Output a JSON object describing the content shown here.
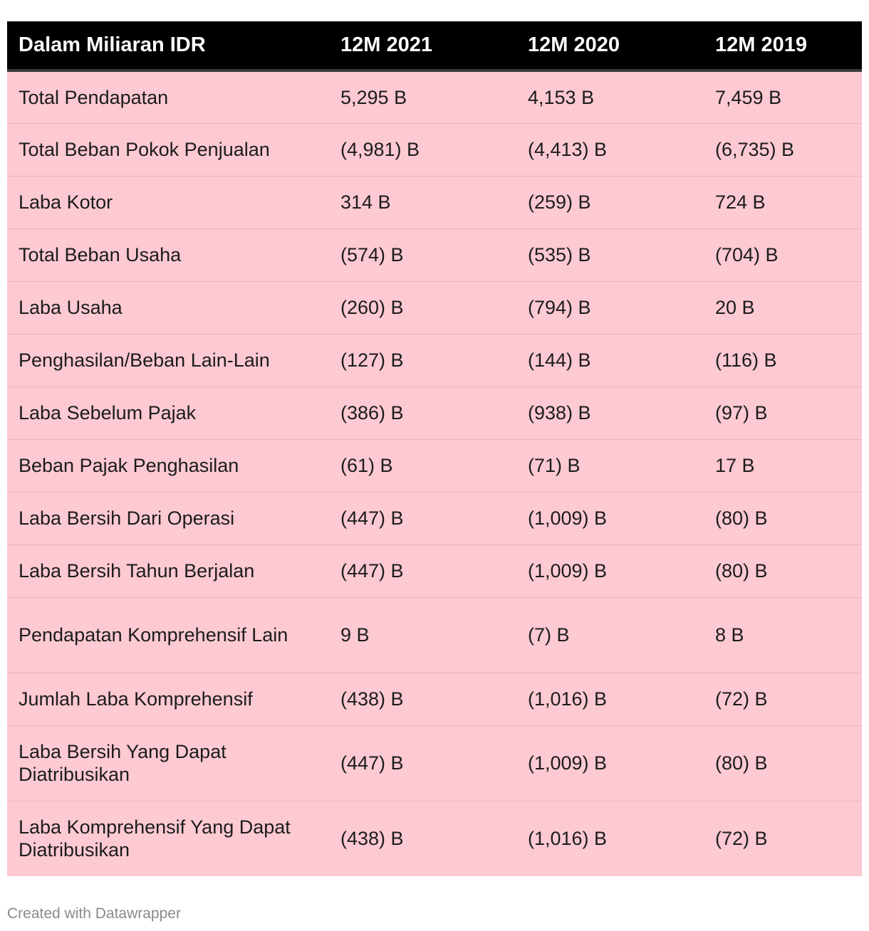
{
  "chart_data": {
    "type": "table",
    "columns": [
      "Dalam Miliaran IDR",
      "12M 2021",
      "12M 2020",
      "12M 2019"
    ],
    "rows": [
      {
        "label": "Total Pendapatan",
        "values": [
          "5,295 B",
          "4,153 B",
          "7,459 B"
        ]
      },
      {
        "label": "Total Beban Pokok Penjualan",
        "values": [
          "(4,981) B",
          "(4,413) B",
          "(6,735) B"
        ]
      },
      {
        "label": "Laba Kotor",
        "values": [
          "314 B",
          "(259) B",
          "724 B"
        ]
      },
      {
        "label": "Total Beban Usaha",
        "values": [
          "(574) B",
          "(535) B",
          "(704) B"
        ]
      },
      {
        "label": "Laba Usaha",
        "values": [
          "(260) B",
          "(794) B",
          "20 B"
        ]
      },
      {
        "label": "Penghasilan/Beban Lain-Lain",
        "values": [
          "(127) B",
          "(144) B",
          "(116) B"
        ]
      },
      {
        "label": "Laba Sebelum Pajak",
        "values": [
          "(386) B",
          "(938) B",
          "(97) B"
        ]
      },
      {
        "label": "Beban Pajak Penghasilan",
        "values": [
          "(61) B",
          "(71) B",
          "17 B"
        ]
      },
      {
        "label": "Laba Bersih Dari Operasi",
        "values": [
          "(447) B",
          "(1,009) B",
          "(80) B"
        ]
      },
      {
        "label": "Laba Bersih Tahun Berjalan",
        "values": [
          "(447) B",
          "(1,009) B",
          "(80) B"
        ]
      },
      {
        "label": "Pendapatan Komprehensif Lain",
        "values": [
          "9 B",
          "(7) B",
          "8 B"
        ]
      },
      {
        "label": "Jumlah Laba Komprehensif",
        "values": [
          "(438) B",
          "(1,016) B",
          "(72) B"
        ]
      },
      {
        "label": "Laba Bersih Yang Dapat Diatribusikan",
        "values": [
          "(447) B",
          "(1,009) B",
          "(80) B"
        ]
      },
      {
        "label": "Laba Komprehensif Yang Dapat Diatribusikan",
        "values": [
          "(438) B",
          "(1,016) B",
          "(72) B"
        ]
      }
    ]
  },
  "footer": {
    "credit": "Created with Datawrapper"
  },
  "colors": {
    "header_bg": "#000000",
    "header_text": "#ffffff",
    "row_bg": "#fdc9d2",
    "row_divider": "#ecb4bd",
    "footer_text": "#8a8a8a"
  }
}
